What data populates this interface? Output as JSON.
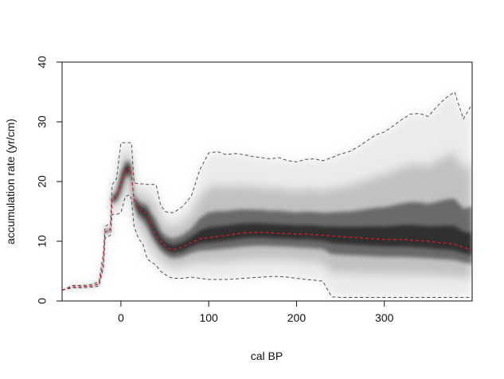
{
  "chart_data": {
    "type": "area",
    "title": "",
    "xlabel": "cal BP",
    "ylabel": "accumulation rate (yr/cm)",
    "xlim": [
      -67,
      400
    ],
    "ylim": [
      0,
      40
    ],
    "xticks": [
      0,
      100,
      200,
      300
    ],
    "yticks": [
      0,
      10,
      20,
      30,
      40
    ],
    "grid": false,
    "legend": "none",
    "colors": {
      "median": "#e0162b",
      "bounds": "#505050",
      "density": "#000000",
      "axes": "#111111"
    },
    "x": [
      -67,
      -55,
      -45,
      -35,
      -25,
      -20,
      -18,
      -12,
      -10,
      -5,
      0,
      5,
      10,
      12,
      15,
      20,
      25,
      30,
      35,
      40,
      45,
      50,
      55,
      60,
      70,
      80,
      90,
      100,
      110,
      120,
      130,
      140,
      150,
      160,
      170,
      180,
      190,
      200,
      210,
      220,
      230,
      240,
      250,
      260,
      270,
      280,
      290,
      300,
      310,
      320,
      330,
      340,
      350,
      360,
      370,
      380,
      390,
      400
    ],
    "series": [
      {
        "name": "",
        "style": "upper",
        "values": [
          1.8,
          2.6,
          2.6,
          2.7,
          3.2,
          8.0,
          12.5,
          13.0,
          19.5,
          20.5,
          26.5,
          26.5,
          26.5,
          26.5,
          19.8,
          19.6,
          19.6,
          19.5,
          19.5,
          19.5,
          16.2,
          15.0,
          14.8,
          14.8,
          15.8,
          17.5,
          22.0,
          24.8,
          25.0,
          24.5,
          24.7,
          24.5,
          24.2,
          24.0,
          23.8,
          24.0,
          23.5,
          23.3,
          23.7,
          23.8,
          23.5,
          24.0,
          24.6,
          25.0,
          25.8,
          26.8,
          27.8,
          28.3,
          29.3,
          30.4,
          31.3,
          31.4,
          30.9,
          32.6,
          34.0,
          35.0,
          30.5,
          33.0
        ]
      },
      {
        "name": "",
        "style": "median",
        "values": [
          1.8,
          2.4,
          2.4,
          2.5,
          2.8,
          6.5,
          11.5,
          12.0,
          17.0,
          17.5,
          19.5,
          22.0,
          22.2,
          21.0,
          17.0,
          15.5,
          15.0,
          14.5,
          12.5,
          11.0,
          10.0,
          9.3,
          8.8,
          8.6,
          9.0,
          9.8,
          10.4,
          10.6,
          10.8,
          11.0,
          11.2,
          11.4,
          11.5,
          11.5,
          11.4,
          11.3,
          11.3,
          11.2,
          11.2,
          11.1,
          11.0,
          10.9,
          10.8,
          10.7,
          10.6,
          10.5,
          10.4,
          10.3,
          10.3,
          10.3,
          10.2,
          10.1,
          10.0,
          9.8,
          9.7,
          9.5,
          9.0,
          8.5
        ]
      },
      {
        "name": "",
        "style": "lower",
        "values": [
          1.8,
          2.2,
          2.2,
          2.3,
          2.5,
          5.5,
          10.5,
          11.0,
          14.5,
          14.5,
          14.8,
          17.5,
          17.8,
          17.0,
          12.5,
          10.5,
          9.5,
          7.0,
          6.5,
          6.0,
          5.0,
          4.5,
          4.0,
          3.8,
          3.8,
          4.0,
          3.8,
          3.6,
          3.6,
          3.6,
          3.7,
          3.8,
          3.9,
          4.0,
          4.1,
          4.1,
          4.0,
          3.8,
          3.6,
          3.5,
          3.3,
          0.7,
          0.6,
          0.6,
          0.6,
          0.6,
          0.6,
          0.6,
          0.6,
          0.6,
          0.6,
          0.6,
          0.6,
          0.6,
          0.6,
          0.6,
          0.6,
          0.6
        ]
      }
    ]
  }
}
